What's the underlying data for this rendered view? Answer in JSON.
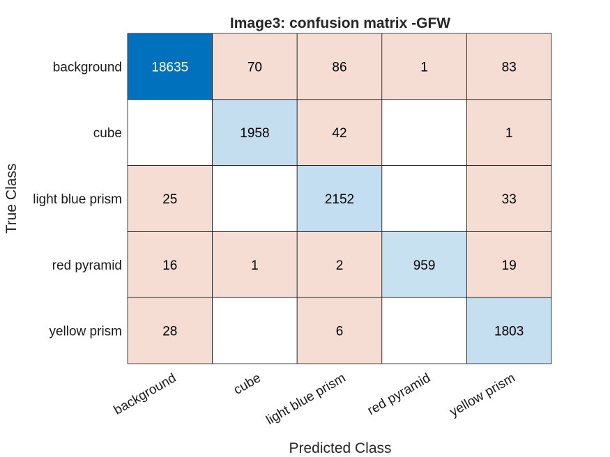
{
  "chart_data": {
    "type": "heatmap",
    "title": "Image3: confusion matrix -GFW",
    "xlabel": "Predicted Class",
    "ylabel": "True Class",
    "classes": [
      "background",
      "cube",
      "light blue prism",
      "red pyramid",
      "yellow prism"
    ],
    "matrix": [
      [
        18635,
        70,
        86,
        1,
        83
      ],
      [
        0,
        1958,
        42,
        0,
        1
      ],
      [
        25,
        0,
        2152,
        0,
        33
      ],
      [
        16,
        1,
        2,
        959,
        19
      ],
      [
        28,
        0,
        6,
        0,
        1803
      ]
    ],
    "zero_cells_blank": true,
    "x_tick_rotation_deg": -30,
    "colors": {
      "diagonal_max": "#0072BD",
      "diagonal_low": "#FFFFFF",
      "off_diagonal": "#F6DDD3",
      "diagonal_text_on_dark": "#FFFFFF",
      "text": "#000000",
      "grid": "#1A1A1A"
    }
  }
}
